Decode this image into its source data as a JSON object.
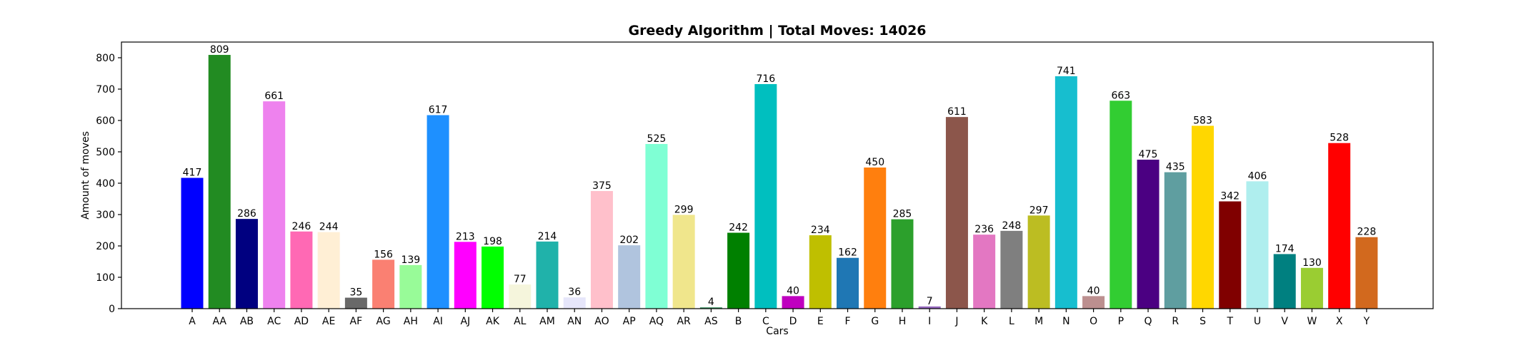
{
  "chart_data": {
    "type": "bar",
    "title": "Greedy Algorithm | Total Moves: 14026",
    "xlabel": "Cars",
    "ylabel": "Amount of moves",
    "ylim": [
      0,
      850
    ],
    "yticks": [
      0,
      100,
      200,
      300,
      400,
      500,
      600,
      700,
      800
    ],
    "grid": false,
    "categories": [
      "A",
      "AA",
      "AB",
      "AC",
      "AD",
      "AE",
      "AF",
      "AG",
      "AH",
      "AI",
      "AJ",
      "AK",
      "AL",
      "AM",
      "AN",
      "AO",
      "AP",
      "AQ",
      "AR",
      "AS",
      "B",
      "C",
      "D",
      "E",
      "F",
      "G",
      "H",
      "I",
      "J",
      "K",
      "L",
      "M",
      "N",
      "O",
      "P",
      "Q",
      "R",
      "S",
      "T",
      "U",
      "V",
      "W",
      "X",
      "Y"
    ],
    "values": [
      417,
      809,
      286,
      661,
      246,
      244,
      35,
      156,
      139,
      617,
      213,
      198,
      77,
      214,
      36,
      375,
      202,
      525,
      299,
      4,
      242,
      716,
      40,
      234,
      162,
      450,
      285,
      7,
      611,
      236,
      248,
      297,
      741,
      40,
      663,
      475,
      435,
      583,
      342,
      406,
      174,
      130,
      528,
      228
    ],
    "colors": [
      "#0000ff",
      "#228b22",
      "#000080",
      "#ee82ee",
      "#ff69b4",
      "#ffefd5",
      "#696969",
      "#fa8072",
      "#98fb98",
      "#1e90ff",
      "#ff00ff",
      "#00ff00",
      "#f5f5dc",
      "#20b2aa",
      "#e6e6fa",
      "#ffc0cb",
      "#b0c4de",
      "#7fffd4",
      "#f0e68c",
      "#2e8b57",
      "#008000",
      "#00bfbf",
      "#bf00bf",
      "#bfbf00",
      "#1f77b4",
      "#ff7f0e",
      "#2ca02c",
      "#9467bd",
      "#8c564b",
      "#e377c2",
      "#7f7f7f",
      "#bcbd22",
      "#17becf",
      "#bc8f8f",
      "#32cd32",
      "#4b0082",
      "#5f9ea0",
      "#ffd700",
      "#800000",
      "#afeeee",
      "#008080",
      "#9acd32",
      "#ff0000",
      "#d2691e"
    ]
  }
}
